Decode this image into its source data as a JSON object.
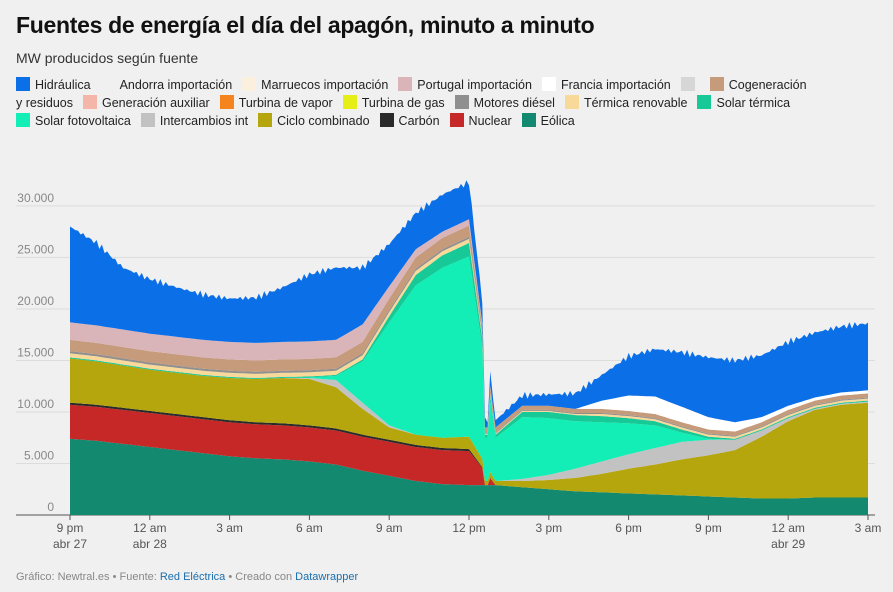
{
  "title": "Fuentes de energía el día del apagón, minuto a minuto",
  "subtitle": "MW producidos según fuente",
  "footer": {
    "prefix": "Gráfico: Newtral.es • Fuente: ",
    "source": "Red Eléctrica",
    "middle": " • Creado con ",
    "tool": "Datawrapper"
  },
  "chart_data": {
    "type": "area",
    "stacked": true,
    "title": "Fuentes de energía el día del apagón, minuto a minuto",
    "ylabel": "MW producidos según fuente",
    "ylim": [
      0,
      33000
    ],
    "y_ticks": [
      0,
      5000,
      10000,
      15000,
      20000,
      25000,
      30000
    ],
    "y_tick_labels": [
      "0",
      "5.000",
      "10.000",
      "15.000",
      "20.000",
      "25.000",
      "30.000"
    ],
    "x_hours": [
      0,
      1,
      2,
      3,
      4,
      5,
      6,
      7,
      8,
      9,
      10,
      11,
      12,
      13,
      14,
      15,
      16,
      17,
      18,
      19,
      20,
      21,
      22,
      23,
      24,
      25,
      26,
      27,
      28,
      29,
      30
    ],
    "x_ticks": [
      {
        "hour": 0,
        "label": "9 pm",
        "sub": "abr 27"
      },
      {
        "hour": 3,
        "label": "12 am",
        "sub": "abr 28"
      },
      {
        "hour": 6,
        "label": "3 am",
        "sub": ""
      },
      {
        "hour": 9,
        "label": "6 am",
        "sub": ""
      },
      {
        "hour": 12,
        "label": "9 am",
        "sub": ""
      },
      {
        "hour": 15,
        "label": "12 pm",
        "sub": ""
      },
      {
        "hour": 18,
        "label": "3 pm",
        "sub": ""
      },
      {
        "hour": 21,
        "label": "6 pm",
        "sub": ""
      },
      {
        "hour": 24,
        "label": "9 pm",
        "sub": ""
      },
      {
        "hour": 27,
        "label": "12 am",
        "sub": "abr 29"
      },
      {
        "hour": 30,
        "label": "3 am",
        "sub": ""
      }
    ],
    "blackout_hour": 15.55,
    "series": [
      {
        "name": "Eólica",
        "color": "#138a6f",
        "values": [
          7400,
          7200,
          6900,
          6600,
          6300,
          6000,
          5700,
          5500,
          5400,
          5200,
          4900,
          4300,
          3800,
          3300,
          3000,
          2900,
          2900,
          2700,
          2500,
          2300,
          2200,
          2100,
          2000,
          1900,
          1800,
          1700,
          1600,
          1600,
          1700,
          1700,
          1700
        ]
      },
      {
        "name": "Nuclear",
        "color": "#c62828",
        "values": [
          3300,
          3300,
          3300,
          3300,
          3300,
          3300,
          3300,
          3300,
          3300,
          3300,
          3300,
          3300,
          3300,
          3300,
          3300,
          3300,
          0,
          0,
          0,
          0,
          0,
          0,
          0,
          0,
          0,
          0,
          0,
          0,
          0,
          0,
          0
        ]
      },
      {
        "name": "Carbón",
        "color": "#2a2a2a",
        "values": [
          200,
          200,
          200,
          200,
          200,
          200,
          200,
          200,
          200,
          200,
          200,
          200,
          200,
          200,
          200,
          200,
          0,
          0,
          0,
          0,
          0,
          0,
          0,
          0,
          0,
          0,
          0,
          0,
          0,
          0,
          0
        ]
      },
      {
        "name": "Ciclo combinado",
        "color": "#b5a60d",
        "values": [
          4300,
          4200,
          4100,
          4000,
          4000,
          4000,
          4100,
          4200,
          4400,
          4500,
          4000,
          2500,
          1200,
          1000,
          1000,
          1200,
          400,
          600,
          900,
          1300,
          1800,
          2400,
          2900,
          3500,
          4000,
          4600,
          6000,
          7500,
          8500,
          9000,
          9200
        ]
      },
      {
        "name": "Intercambios int",
        "color": "#c2c2c2",
        "values": [
          0,
          0,
          0,
          0,
          0,
          0,
          0,
          0,
          0,
          100,
          700,
          600,
          200,
          0,
          0,
          0,
          0,
          200,
          500,
          900,
          1200,
          1400,
          1600,
          1700,
          1500,
          1000,
          600,
          300,
          100,
          100,
          100
        ]
      },
      {
        "name": "Solar fotovoltaica",
        "color": "#12eeb5",
        "values": [
          0,
          0,
          0,
          0,
          0,
          0,
          0,
          0,
          0,
          50,
          400,
          4000,
          10000,
          14500,
          16500,
          17500,
          4200,
          6000,
          5500,
          4600,
          3800,
          3000,
          2200,
          900,
          100,
          0,
          0,
          0,
          0,
          0,
          0
        ]
      },
      {
        "name": "Solar térmica",
        "color": "#17c997",
        "values": [
          100,
          100,
          100,
          100,
          100,
          100,
          100,
          100,
          100,
          100,
          100,
          200,
          600,
          1000,
          1200,
          1300,
          300,
          500,
          600,
          600,
          600,
          500,
          400,
          300,
          200,
          100,
          100,
          100,
          100,
          100,
          100
        ]
      },
      {
        "name": "Térmica renovable",
        "color": "#f9d99a",
        "values": [
          400,
          400,
          400,
          400,
          400,
          400,
          400,
          400,
          400,
          400,
          400,
          400,
          400,
          400,
          400,
          400,
          100,
          100,
          100,
          100,
          200,
          200,
          200,
          200,
          200,
          200,
          200,
          200,
          200,
          200,
          200
        ]
      },
      {
        "name": "Motores diésel",
        "color": "#8f8f8f",
        "values": [
          200,
          200,
          200,
          200,
          200,
          200,
          200,
          200,
          200,
          200,
          200,
          200,
          200,
          200,
          200,
          200,
          100,
          100,
          100,
          100,
          100,
          100,
          100,
          100,
          100,
          100,
          100,
          100,
          100,
          100,
          100
        ]
      },
      {
        "name": "Turbina de gas",
        "color": "#e6ee17",
        "values": [
          0,
          0,
          0,
          0,
          0,
          0,
          0,
          0,
          0,
          0,
          0,
          0,
          0,
          0,
          0,
          0,
          0,
          0,
          0,
          0,
          0,
          0,
          0,
          0,
          0,
          0,
          0,
          0,
          0,
          0,
          0
        ]
      },
      {
        "name": "Turbina de vapor",
        "color": "#f5841f",
        "values": [
          0,
          0,
          0,
          0,
          0,
          0,
          0,
          0,
          0,
          0,
          0,
          0,
          0,
          0,
          0,
          0,
          0,
          0,
          0,
          0,
          0,
          0,
          0,
          0,
          0,
          0,
          0,
          0,
          0,
          0,
          0
        ]
      },
      {
        "name": "Generación auxiliar",
        "color": "#f4b6a8",
        "values": [
          0,
          0,
          0,
          0,
          0,
          0,
          0,
          0,
          0,
          0,
          0,
          0,
          0,
          0,
          0,
          0,
          0,
          0,
          0,
          0,
          0,
          0,
          0,
          0,
          0,
          0,
          0,
          0,
          0,
          0,
          0
        ]
      },
      {
        "name": "Cogeneración y residuos",
        "color": "#c69b7b",
        "values": [
          1100,
          1100,
          1100,
          1100,
          1100,
          1100,
          1100,
          1100,
          1100,
          1100,
          1100,
          1100,
          1100,
          1100,
          1100,
          1100,
          500,
          400,
          400,
          400,
          400,
          400,
          400,
          400,
          400,
          400,
          400,
          400,
          400,
          400,
          400
        ]
      },
      {
        "name": "Francia importación",
        "color": "#ffffff",
        "values": [
          0,
          0,
          0,
          0,
          0,
          0,
          0,
          0,
          0,
          0,
          0,
          0,
          0,
          0,
          0,
          0,
          0,
          0,
          0,
          0,
          800,
          1500,
          1700,
          1500,
          1200,
          900,
          500,
          400,
          300,
          300,
          300
        ]
      },
      {
        "name": "Portugal importación",
        "color": "#d9b5b9",
        "values": [
          1700,
          1700,
          1700,
          1700,
          1700,
          1700,
          1700,
          1700,
          1700,
          1700,
          1700,
          1700,
          1200,
          800,
          600,
          600,
          0,
          0,
          0,
          0,
          0,
          0,
          0,
          0,
          0,
          0,
          0,
          0,
          0,
          0,
          0
        ]
      },
      {
        "name": "Marruecos importación",
        "color": "#fbf0dd",
        "values": [
          0,
          0,
          0,
          0,
          0,
          0,
          0,
          0,
          0,
          0,
          0,
          0,
          0,
          0,
          0,
          0,
          0,
          0,
          0,
          0,
          0,
          0,
          0,
          0,
          0,
          0,
          0,
          0,
          0,
          0,
          0
        ]
      },
      {
        "name": "Andorra importación",
        "color": "#f0f0f0",
        "values": [
          0,
          0,
          0,
          0,
          0,
          0,
          0,
          0,
          0,
          0,
          0,
          0,
          0,
          0,
          0,
          0,
          0,
          0,
          0,
          0,
          0,
          0,
          0,
          0,
          0,
          0,
          0,
          0,
          0,
          0,
          0
        ]
      },
      {
        "name": "Hidráulica",
        "color": "#0b6fe8",
        "values": [
          9300,
          8000,
          6000,
          5300,
          4800,
          4400,
          4200,
          4400,
          5300,
          6500,
          7000,
          5500,
          4100,
          3500,
          3600,
          3600,
          700,
          1000,
          1100,
          1500,
          2500,
          3800,
          4600,
          5300,
          5800,
          6000,
          6000,
          6200,
          6300,
          6400,
          6500
        ]
      }
    ],
    "legend": [
      {
        "name": "Hidráulica",
        "color": "#0b6fe8"
      },
      {
        "name": "Andorra importación",
        "color": "#f0f0f0"
      },
      {
        "name": "Marruecos importación",
        "color": "#fbf0dd"
      },
      {
        "name": "Portugal importación",
        "color": "#d9b5b9"
      },
      {
        "name": "Francia importación",
        "color": "#ffffff"
      },
      {
        "name": "",
        "color": "#d6d6d6"
      },
      {
        "name": "Cogeneración y residuos",
        "color": "#c69b7b"
      },
      {
        "name": "Generación auxiliar",
        "color": "#f4b6a8"
      },
      {
        "name": "Turbina de vapor",
        "color": "#f5841f"
      },
      {
        "name": "Turbina de gas",
        "color": "#e6ee17"
      },
      {
        "name": "Motores diésel",
        "color": "#8f8f8f"
      },
      {
        "name": "Térmica renovable",
        "color": "#f9d99a"
      },
      {
        "name": "Solar térmica",
        "color": "#17c997"
      },
      {
        "name": "Solar fotovoltaica",
        "color": "#12eeb5"
      },
      {
        "name": "Intercambios int",
        "color": "#c2c2c2"
      },
      {
        "name": "Ciclo combinado",
        "color": "#b5a60d"
      },
      {
        "name": "Carbón",
        "color": "#2a2a2a"
      },
      {
        "name": "Nuclear",
        "color": "#c62828"
      },
      {
        "name": "Eólica",
        "color": "#138a6f"
      }
    ]
  }
}
